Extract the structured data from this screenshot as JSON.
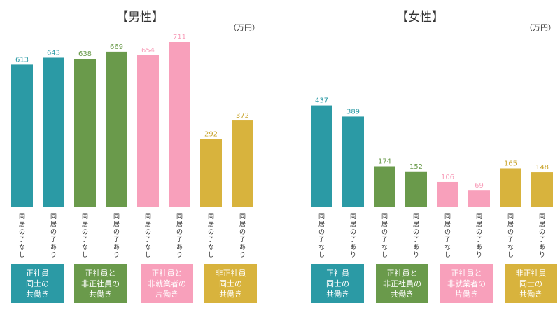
{
  "colors": {
    "teal": "#2b9aa5",
    "green": "#6a9a4b",
    "pink": "#f8a0bb",
    "gold": "#d8b33d"
  },
  "chart_data": [
    {
      "type": "bar",
      "title": "【男性】",
      "unit": "（万円）",
      "categories": [
        "同居の子なし",
        "同居の子あり",
        "同居の子なし",
        "同居の子あり",
        "同居の子なし",
        "同居の子あり",
        "同居の子なし",
        "同居の子あり"
      ],
      "values": [
        613,
        643,
        638,
        669,
        654,
        711,
        292,
        372
      ],
      "groups": [
        {
          "label": "正社員\n同士の\n共働き",
          "color": "#2b9aa5"
        },
        {
          "label": "正社員と\n非正社員の\n共働き",
          "color": "#6a9a4b"
        },
        {
          "label": "正社員と\n非就業者の\n片働き",
          "color": "#f8a0bb"
        },
        {
          "label": "非正社員\n同士の\n共働き",
          "color": "#d8b33d"
        }
      ],
      "ylim": [
        0,
        750
      ],
      "grid": false
    },
    {
      "type": "bar",
      "title": "【女性】",
      "unit": "（万円）",
      "categories": [
        "同居の子なし",
        "同居の子あり",
        "同居の子なし",
        "同居の子あり",
        "同居の子なし",
        "同居の子あり",
        "同居の子なし",
        "同居の子あり"
      ],
      "values": [
        437,
        389,
        174,
        152,
        106,
        69,
        165,
        148
      ],
      "groups": [
        {
          "label": "正社員\n同士の\n共働き",
          "color": "#2b9aa5"
        },
        {
          "label": "正社員と\n非正社員の\n共働き",
          "color": "#6a9a4b"
        },
        {
          "label": "正社員と\n非就業者の\n片働き",
          "color": "#f8a0bb"
        },
        {
          "label": "非正社員\n同士の\n共働き",
          "color": "#d8b33d"
        }
      ],
      "ylim": [
        0,
        750
      ],
      "grid": false
    }
  ]
}
